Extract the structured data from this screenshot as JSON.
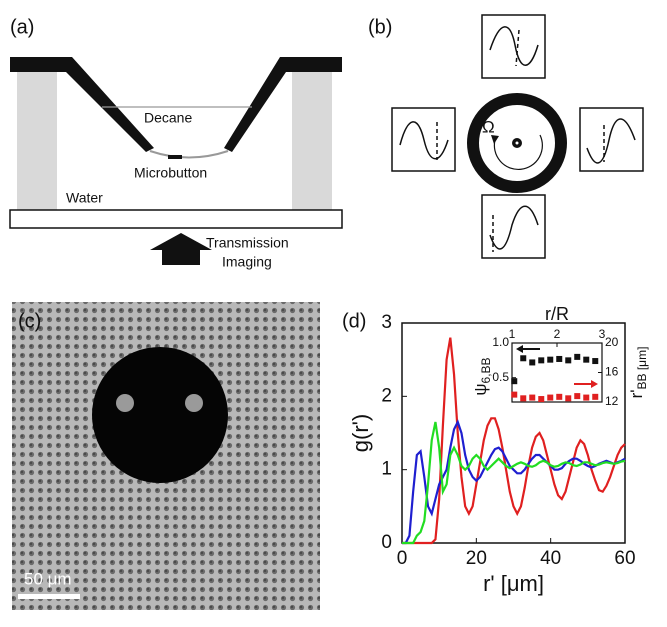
{
  "panel_labels": [
    "(a)",
    "(b)",
    "(c)",
    "(d)"
  ],
  "panel_a": {
    "labels": [
      "Decane",
      "Microbutton",
      "Water",
      "Transmission",
      "Imaging"
    ]
  },
  "panel_b": {
    "symbol": "Ω"
  },
  "panel_c": {
    "scale_bar": "50 μm"
  },
  "chart_data": [
    {
      "type": "line",
      "xlabel": "r' [μm]",
      "ylabel": "g(r')",
      "xlim": [
        0,
        60
      ],
      "xticks": [
        0,
        20,
        40,
        60
      ],
      "ylim": [
        0,
        3
      ],
      "yticks": [
        0,
        1,
        2,
        3
      ],
      "x": [
        0,
        1,
        2,
        3,
        4,
        5,
        6,
        7,
        8,
        9,
        10,
        11,
        12,
        13,
        14,
        15,
        16,
        17,
        18,
        19,
        20,
        21,
        22,
        23,
        24,
        25,
        26,
        27,
        28,
        29,
        30,
        31,
        32,
        33,
        34,
        35,
        36,
        37,
        38,
        39,
        40,
        41,
        42,
        43,
        44,
        45,
        46,
        47,
        48,
        49,
        50,
        51,
        52,
        53,
        54,
        55,
        56,
        57,
        58,
        59,
        60
      ],
      "series": [
        {
          "color": "#e02020",
          "values": [
            0,
            0,
            0,
            0,
            0,
            0,
            0,
            0,
            0,
            0.05,
            0.6,
            1.6,
            2.5,
            2.8,
            2.3,
            1.5,
            0.9,
            0.5,
            0.4,
            0.5,
            0.8,
            1.1,
            1.4,
            1.6,
            1.7,
            1.7,
            1.55,
            1.3,
            1.0,
            0.7,
            0.5,
            0.4,
            0.5,
            0.75,
            1.05,
            1.3,
            1.45,
            1.5,
            1.4,
            1.2,
            1.0,
            0.8,
            0.65,
            0.6,
            0.7,
            0.9,
            1.1,
            1.3,
            1.4,
            1.35,
            1.2,
            1.0,
            0.85,
            0.72,
            0.7,
            0.78,
            0.9,
            1.05,
            1.2,
            1.3,
            1.35
          ]
        },
        {
          "color": "#1f1fd0",
          "values": [
            0,
            0,
            0.1,
            0.7,
            1.2,
            1.25,
            0.9,
            0.5,
            0.4,
            0.6,
            0.8,
            0.9,
            1.0,
            1.3,
            1.55,
            1.65,
            1.5,
            1.2,
            1.0,
            0.9,
            0.85,
            0.9,
            1.0,
            1.1,
            1.2,
            1.28,
            1.3,
            1.25,
            1.15,
            1.05,
            1.0,
            0.95,
            0.95,
            1.0,
            1.08,
            1.15,
            1.2,
            1.2,
            1.15,
            1.1,
            1.05,
            1.0,
            1.0,
            1.02,
            1.08,
            1.12,
            1.15,
            1.15,
            1.12,
            1.08,
            1.05,
            1.03,
            1.05,
            1.08,
            1.1,
            1.12,
            1.1,
            1.08,
            1.1,
            1.12,
            1.15
          ]
        },
        {
          "color": "#22dd22",
          "values": [
            0,
            0,
            0,
            0,
            0.1,
            0.15,
            0.3,
            0.8,
            1.4,
            1.65,
            1.3,
            0.7,
            0.8,
            1.2,
            1.3,
            1.2,
            1.05,
            1.0,
            1.05,
            1.15,
            1.2,
            1.15,
            1.05,
            1.0,
            1.05,
            1.1,
            1.15,
            1.1,
            1.05,
            1.02,
            1.05,
            1.08,
            1.1,
            1.08,
            1.05,
            1.04,
            1.06,
            1.1,
            1.12,
            1.1,
            1.06,
            1.04,
            1.05,
            1.08,
            1.1,
            1.09,
            1.06,
            1.05,
            1.07,
            1.1,
            1.1,
            1.08,
            1.06,
            1.07,
            1.09,
            1.1,
            1.09,
            1.08,
            1.09,
            1.11,
            1.12
          ]
        }
      ]
    },
    {
      "type": "scatter",
      "xlabel": "r/R",
      "ylabel": "ψ",
      "ylabel_sub": "6,BB",
      "y2label": "r'",
      "y2label_sub": "BB [μm]",
      "xlim": [
        1,
        3
      ],
      "xticks": [
        1,
        2,
        3
      ],
      "ylim": [
        0.15,
        1.0
      ],
      "yticks": [
        {
          "value": 1.0,
          "label": "1.0"
        },
        0.5
      ],
      "y2lim": [
        12,
        20
      ],
      "y2ticks": [
        20,
        16,
        12
      ],
      "x": [
        1.05,
        1.25,
        1.45,
        1.65,
        1.85,
        2.05,
        2.25,
        2.45,
        2.65,
        2.85
      ],
      "series": [
        {
          "color": "#111111",
          "values": [
            0.45,
            0.78,
            0.72,
            0.75,
            0.76,
            0.77,
            0.75,
            0.8,
            0.76,
            0.74
          ]
        },
        {
          "color": "#e02020",
          "axis": "y2",
          "values": [
            13.0,
            12.5,
            12.6,
            12.4,
            12.6,
            12.7,
            12.5,
            12.8,
            12.6,
            12.7
          ]
        }
      ]
    }
  ]
}
